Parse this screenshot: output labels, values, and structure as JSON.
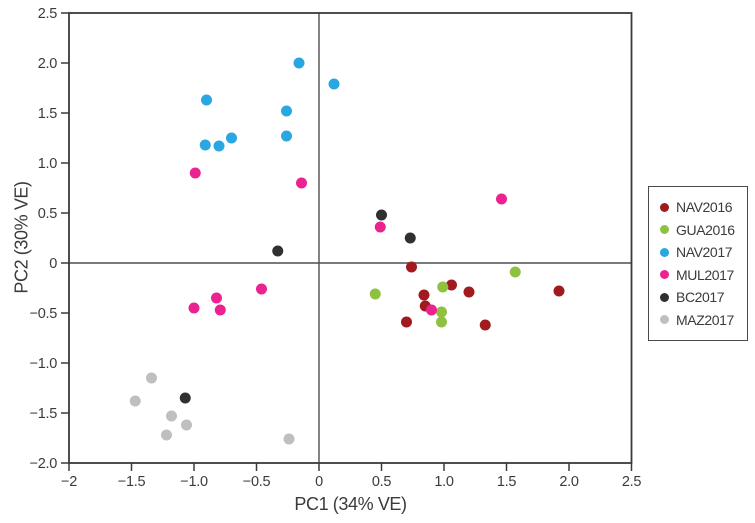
{
  "chart_data": {
    "type": "scatter",
    "title": "",
    "xlabel": "PC1 (34% VE)",
    "ylabel": "PC2 (30% VE)",
    "xlim": [
      -2,
      2.5
    ],
    "ylim": [
      -2,
      2.5
    ],
    "grid": false,
    "zero_reference_lines": true,
    "legend_position": "right-outside",
    "x_ticks": [
      -2,
      -1.5,
      -1,
      -0.5,
      0,
      0.5,
      1,
      1.5,
      2,
      2.5
    ],
    "x_tick_labels": [
      "−2",
      "−1.5",
      "−1.0",
      "−0.5",
      "0",
      "0.5",
      "1.0",
      "1.5",
      "2.0",
      "2.5"
    ],
    "y_ticks": [
      2.5,
      2,
      1.5,
      1,
      0.5,
      0,
      -0.5,
      -1,
      -1.5,
      -2
    ],
    "y_tick_labels": [
      "2.5",
      "2.0",
      "1.5",
      "1.0",
      "0.5",
      "0",
      "−0.5",
      "−1.0",
      "−1.5",
      "−2.0"
    ],
    "axis_color": "#3a3a3a",
    "zero_line_color": "#4f4f4f",
    "series": [
      {
        "name": "NAV2016",
        "color": "#a11a1e",
        "points": [
          [
            0.74,
            -0.04
          ],
          [
            0.84,
            -0.32
          ],
          [
            0.85,
            -0.43
          ],
          [
            0.7,
            -0.59
          ],
          [
            1.06,
            -0.22
          ],
          [
            1.2,
            -0.29
          ],
          [
            1.33,
            -0.62
          ],
          [
            1.92,
            -0.28
          ]
        ]
      },
      {
        "name": "GUA2016",
        "color": "#8fc140",
        "points": [
          [
            0.45,
            -0.31
          ],
          [
            0.99,
            -0.24
          ],
          [
            0.98,
            -0.49
          ],
          [
            0.98,
            -0.59
          ],
          [
            1.57,
            -0.09
          ]
        ]
      },
      {
        "name": "NAV2017",
        "color": "#2aa6e0",
        "points": [
          [
            -0.9,
            1.63
          ],
          [
            -0.91,
            1.18
          ],
          [
            -0.8,
            1.17
          ],
          [
            -0.7,
            1.25
          ],
          [
            -0.26,
            1.52
          ],
          [
            -0.26,
            1.27
          ],
          [
            -0.16,
            2.0
          ],
          [
            0.12,
            1.79
          ]
        ]
      },
      {
        "name": "MUL2017",
        "color": "#eb2290",
        "points": [
          [
            -0.99,
            0.9
          ],
          [
            -0.14,
            0.8
          ],
          [
            0.49,
            0.36
          ],
          [
            1.46,
            0.64
          ],
          [
            -0.46,
            -0.26
          ],
          [
            -0.82,
            -0.35
          ],
          [
            -1.0,
            -0.45
          ],
          [
            -0.79,
            -0.47
          ],
          [
            0.9,
            -0.47
          ]
        ]
      },
      {
        "name": "BC2017",
        "color": "#303030",
        "points": [
          [
            -0.33,
            0.12
          ],
          [
            0.5,
            0.48
          ],
          [
            0.73,
            0.25
          ],
          [
            -1.07,
            -1.35
          ]
        ]
      },
      {
        "name": "MAZ2017",
        "color": "#bfbfbf",
        "points": [
          [
            -1.34,
            -1.15
          ],
          [
            -1.47,
            -1.38
          ],
          [
            -1.18,
            -1.53
          ],
          [
            -1.06,
            -1.62
          ],
          [
            -1.22,
            -1.72
          ],
          [
            -0.24,
            -1.76
          ]
        ]
      }
    ]
  }
}
